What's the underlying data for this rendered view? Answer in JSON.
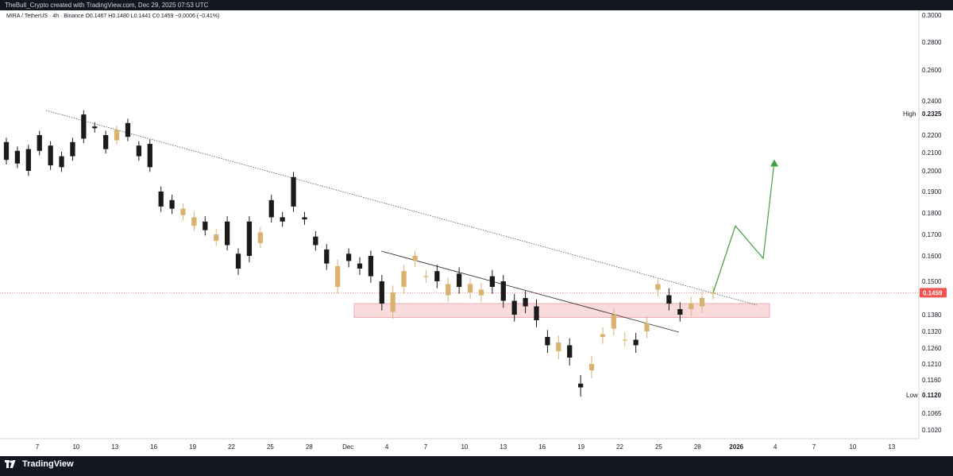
{
  "header": {
    "credit": "TheBull_Crypto created with TradingView.com, Dec 29, 2025 07:53 UTC"
  },
  "footer": {
    "brand": "TradingView"
  },
  "chart_data": {
    "type": "candlestick",
    "symbol_line": "MIRA / TetherUS · 4h · Binance   O0.1467  H0.1480  L0.1441  C0.1459  −0.0006 (−0.41%)",
    "ylim": [
      0.1,
      0.3
    ],
    "price_ticks": [
      "0.3000",
      "0.2800",
      "0.2600",
      "0.2400",
      "0.2200",
      "0.2100",
      "0.2000",
      "0.1900",
      "0.1800",
      "0.1700",
      "0.1600",
      "0.1500",
      "0.1380",
      "0.1320",
      "0.1260",
      "0.1210",
      "0.1160",
      "0.1065",
      "0.1020"
    ],
    "x_labels": [
      "7",
      "10",
      "13",
      "16",
      "19",
      "22",
      "25",
      "28",
      "Dec",
      "4",
      "7",
      "10",
      "13",
      "16",
      "19",
      "22",
      "25",
      "28",
      "2026",
      "4",
      "7",
      "10",
      "13"
    ],
    "bold_x_label": "2026",
    "current_price": 0.1459,
    "high": {
      "label": "High",
      "value": "0.2325"
    },
    "low": {
      "label": "Low",
      "value": "0.1120"
    },
    "support_zone": [
      0.137,
      0.142
    ],
    "price_path": [
      [
        0.216,
        0.206
      ],
      [
        0.211,
        0.204
      ],
      [
        0.212,
        0.2
      ],
      [
        0.22,
        0.211
      ],
      [
        0.214,
        0.203
      ],
      [
        0.208,
        0.202
      ],
      [
        0.216,
        0.208
      ],
      [
        0.232,
        0.218
      ],
      [
        0.225,
        0.224
      ],
      [
        0.22,
        0.212
      ],
      [
        0.217,
        0.223
      ],
      [
        0.227,
        0.219
      ],
      [
        0.214,
        0.208
      ],
      [
        0.215,
        0.202
      ],
      [
        0.19,
        0.183
      ],
      [
        0.186,
        0.182
      ],
      [
        0.179,
        0.182
      ],
      [
        0.174,
        0.178
      ],
      [
        0.176,
        0.172
      ],
      [
        0.167,
        0.17
      ],
      [
        0.176,
        0.165
      ],
      [
        0.161,
        0.155
      ],
      [
        0.176,
        0.16
      ],
      [
        0.166,
        0.171
      ],
      [
        0.186,
        0.178
      ],
      [
        0.178,
        0.176
      ],
      [
        0.197,
        0.183
      ],
      [
        0.178,
        0.177
      ],
      [
        0.169,
        0.165
      ],
      [
        0.163,
        0.157
      ],
      [
        0.148,
        0.156
      ],
      [
        0.161,
        0.158
      ],
      [
        0.157,
        0.155
      ],
      [
        0.16,
        0.152
      ],
      [
        0.15,
        0.142
      ],
      [
        0.139,
        0.146
      ],
      [
        0.148,
        0.154
      ],
      [
        0.158,
        0.16
      ],
      [
        0.152,
        0.152
      ],
      [
        0.154,
        0.15
      ],
      [
        0.145,
        0.149
      ],
      [
        0.153,
        0.148
      ],
      [
        0.146,
        0.149
      ],
      [
        0.145,
        0.147
      ],
      [
        0.152,
        0.148
      ],
      [
        0.15,
        0.143
      ],
      [
        0.143,
        0.138
      ],
      [
        0.144,
        0.141
      ],
      [
        0.141,
        0.136
      ],
      [
        0.13,
        0.127
      ],
      [
        0.125,
        0.128
      ],
      [
        0.127,
        0.123
      ],
      [
        0.115,
        0.114
      ],
      [
        0.119,
        0.121
      ],
      [
        0.13,
        0.131
      ],
      [
        0.133,
        0.138
      ],
      [
        0.129,
        0.129
      ],
      [
        0.129,
        0.127
      ],
      [
        0.132,
        0.135
      ],
      [
        0.147,
        0.149
      ],
      [
        0.145,
        0.142
      ],
      [
        0.14,
        0.138
      ],
      [
        0.14,
        0.142
      ],
      [
        0.141,
        0.144
      ],
      [
        0.1459,
        0.1459
      ]
    ],
    "projection": [
      [
        0.1459,
        0.174
      ],
      [
        0.174,
        0.159
      ],
      [
        0.159,
        0.205
      ]
    ]
  }
}
